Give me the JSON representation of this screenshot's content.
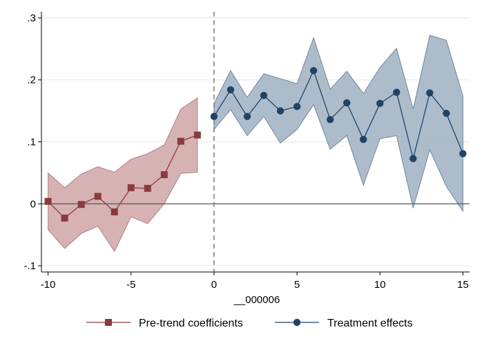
{
  "chart_data": {
    "type": "line",
    "xlabel": "__000006",
    "ylabel": "",
    "xlim": [
      -10.4,
      15.4
    ],
    "ylim": [
      -0.11,
      0.31
    ],
    "xticks": [
      -10,
      -5,
      0,
      5,
      10,
      15
    ],
    "xtick_labels": [
      "-10",
      "-5",
      "0",
      "5",
      "10",
      "15"
    ],
    "yticks": [
      -0.1,
      0,
      0.1,
      0.2,
      0.3
    ],
    "ytick_labels": [
      "-.1",
      "0",
      ".1",
      ".2",
      ".3"
    ],
    "grid": true,
    "reference_lines": {
      "x": 0,
      "y": 0
    },
    "legend_position": "bottom",
    "series": [
      {
        "name": "Pre-trend coefficients",
        "marker": "square",
        "color": "#8B3A3F",
        "band_color": "#CFA5A6",
        "x": [
          -10,
          -9,
          -8,
          -7,
          -6,
          -5,
          -4,
          -3,
          -2,
          -1
        ],
        "values": [
          0.004,
          -0.023,
          -0.001,
          0.012,
          -0.013,
          0.026,
          0.025,
          0.047,
          0.101,
          0.111
        ],
        "lower": [
          -0.042,
          -0.072,
          -0.048,
          -0.036,
          -0.077,
          -0.021,
          -0.032,
          0.0,
          0.049,
          0.051
        ],
        "upper": [
          0.05,
          0.026,
          0.048,
          0.06,
          0.051,
          0.072,
          0.081,
          0.095,
          0.153,
          0.171
        ]
      },
      {
        "name": "Treatment effects",
        "marker": "circle",
        "color": "#1F4466",
        "band_color": "#9FB0C2",
        "x": [
          0,
          1,
          2,
          3,
          4,
          5,
          6,
          7,
          8,
          9,
          10,
          11,
          12,
          13,
          14,
          15
        ],
        "values": [
          0.141,
          0.184,
          0.141,
          0.175,
          0.15,
          0.157,
          0.215,
          0.136,
          0.163,
          0.104,
          0.162,
          0.18,
          0.073,
          0.179,
          0.146,
          0.081
        ],
        "lower": [
          0.12,
          0.152,
          0.11,
          0.141,
          0.098,
          0.12,
          0.16,
          0.088,
          0.11,
          0.03,
          0.105,
          0.11,
          -0.007,
          0.087,
          0.028,
          -0.012
        ],
        "upper": [
          0.162,
          0.215,
          0.172,
          0.21,
          0.202,
          0.194,
          0.268,
          0.185,
          0.214,
          0.178,
          0.22,
          0.251,
          0.153,
          0.272,
          0.264,
          0.174
        ]
      }
    ]
  }
}
